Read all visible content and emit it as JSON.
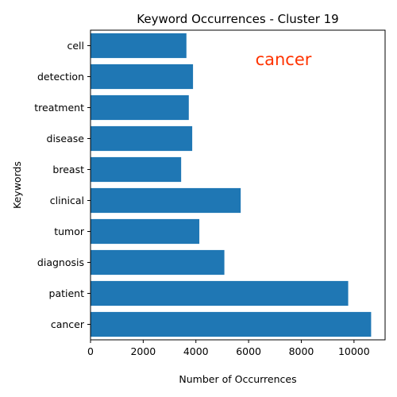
{
  "chart_data": {
    "type": "bar",
    "orientation": "horizontal",
    "title": "Keyword Occurrences - Cluster 19",
    "xlabel": "Number of Occurrences",
    "ylabel": "Keywords",
    "categories": [
      "cancer",
      "patient",
      "diagnosis",
      "tumor",
      "clinical",
      "breast",
      "disease",
      "treatment",
      "detection",
      "cell"
    ],
    "values": [
      10650,
      9780,
      5080,
      4130,
      5700,
      3440,
      3860,
      3730,
      3890,
      3640
    ],
    "xlim": [
      0,
      11180
    ],
    "xticks": [
      0,
      2000,
      4000,
      6000,
      8000,
      10000
    ],
    "xtick_labels": [
      "0",
      "2000",
      "4000",
      "6000",
      "8000",
      "10000"
    ],
    "grid": false,
    "bar_color": "#1f77b4",
    "annotation": {
      "text": "cancer",
      "color": "#ff3300"
    }
  }
}
